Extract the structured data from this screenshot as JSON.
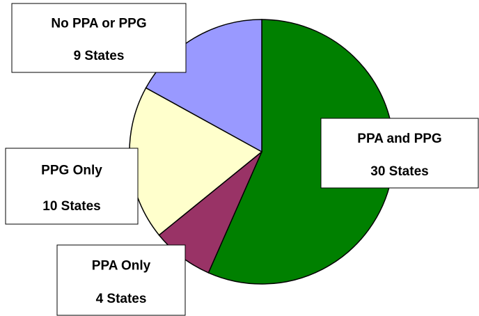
{
  "chart_data": {
    "type": "pie",
    "categories": [
      "PPA and PPG",
      "PPA Only",
      "PPG Only",
      "No PPA or PPG"
    ],
    "values": [
      30,
      4,
      10,
      9
    ],
    "value_labels": [
      "30 States",
      "4 States",
      "10 States",
      "9 States"
    ],
    "colors": [
      "#008000",
      "#993366",
      "#ffffcc",
      "#9999ff"
    ]
  }
}
